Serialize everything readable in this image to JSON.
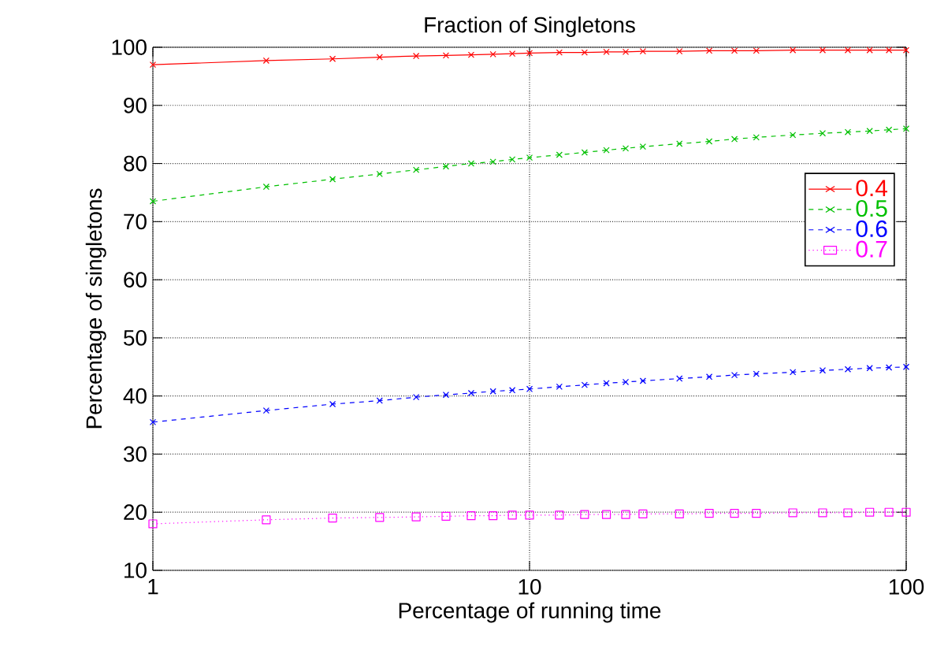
{
  "chart_data": {
    "type": "line",
    "title": "Fraction of Singletons",
    "xlabel": "Percentage of running time",
    "ylabel": "Percentage of singletons",
    "log": "x",
    "xlim": [
      1,
      100
    ],
    "xticks": [
      1,
      10,
      100
    ],
    "ylim": [
      10,
      100
    ],
    "yticks": [
      10,
      20,
      30,
      40,
      50,
      60,
      70,
      80,
      90,
      100
    ],
    "grid": true,
    "legend": "right",
    "x": [
      1,
      2,
      3,
      4,
      5,
      6,
      7,
      8,
      9,
      10,
      12,
      14,
      16,
      18,
      20,
      25,
      30,
      35,
      40,
      50,
      60,
      70,
      80,
      90,
      100
    ],
    "series": [
      {
        "name": "0.4",
        "color": "#ff0000",
        "marker": "cross",
        "line_style": "solid",
        "values": [
          97,
          97.7,
          98,
          98.3,
          98.5,
          98.6,
          98.7,
          98.8,
          98.9,
          99,
          99.1,
          99.1,
          99.2,
          99.2,
          99.3,
          99.3,
          99.4,
          99.4,
          99.4,
          99.5,
          99.5,
          99.5,
          99.5,
          99.5,
          99.5
        ]
      },
      {
        "name": "0.5",
        "color": "#00c000",
        "marker": "cross",
        "line_style": "dashed",
        "values": [
          73.5,
          76,
          77.3,
          78.2,
          78.9,
          79.5,
          80,
          80.3,
          80.7,
          81,
          81.5,
          81.9,
          82.3,
          82.6,
          82.9,
          83.4,
          83.8,
          84.2,
          84.5,
          84.9,
          85.2,
          85.4,
          85.6,
          85.8,
          86
        ]
      },
      {
        "name": "0.6",
        "color": "#0000ff",
        "marker": "cross",
        "line_style": "dashed",
        "values": [
          35.5,
          37.5,
          38.6,
          39.2,
          39.8,
          40.2,
          40.5,
          40.8,
          41,
          41.2,
          41.6,
          41.9,
          42.2,
          42.4,
          42.6,
          43,
          43.3,
          43.6,
          43.8,
          44.1,
          44.4,
          44.6,
          44.8,
          44.9,
          45
        ]
      },
      {
        "name": "0.7",
        "color": "#ff00ff",
        "marker": "square",
        "line_style": "dotted",
        "values": [
          18,
          18.7,
          19,
          19.1,
          19.2,
          19.3,
          19.4,
          19.4,
          19.5,
          19.5,
          19.5,
          19.6,
          19.6,
          19.6,
          19.7,
          19.7,
          19.8,
          19.8,
          19.8,
          19.9,
          19.9,
          19.9,
          20,
          20,
          20
        ]
      }
    ]
  }
}
